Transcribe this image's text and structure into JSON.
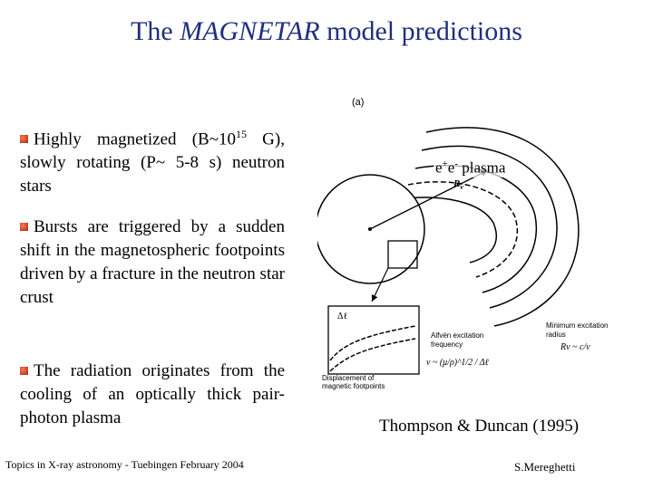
{
  "slide": {
    "title_italic": "MAGNETAR",
    "title_pre": "The ",
    "title_post": " model predictions"
  },
  "bullets": [
    {
      "pre": "Highly magnetized (B~10",
      "sup": "15",
      "post": " G), slowly rotating (P~ 5-8 s) neutron stars"
    },
    {
      "text": "Bursts are triggered by a sudden shift in the magnetospheric footpoints driven by a fracture in the neutron star crust"
    },
    {
      "text": "The radiation originates from the cooling of an optically thick pair-photon plasma"
    }
  ],
  "figure": {
    "panel_label": "(a)",
    "plasma_label": {
      "pre": "e",
      "sup1": "+",
      "mid": "e",
      "sup2": "-",
      "post": " plasma"
    },
    "r_nu": "R",
    "r_nu_sub": "ν",
    "delta_l": "Δℓ",
    "alfven": [
      "Alfvén excitation",
      "frequency"
    ],
    "freq_formula": "ν ~ (μ/ρ)^1/2 / Δℓ",
    "min_exc": [
      "Minimum excitation",
      "radius"
    ],
    "radius_formula": "Rν ~ c/ν",
    "displacement": [
      "Displacement of",
      "magnetic footpoints"
    ]
  },
  "citation": "Thompson & Duncan (1995)",
  "footer": {
    "left": "Topics in X-ray astronomy - Tuebingen February 2004",
    "right": "S.Mereghetti"
  }
}
